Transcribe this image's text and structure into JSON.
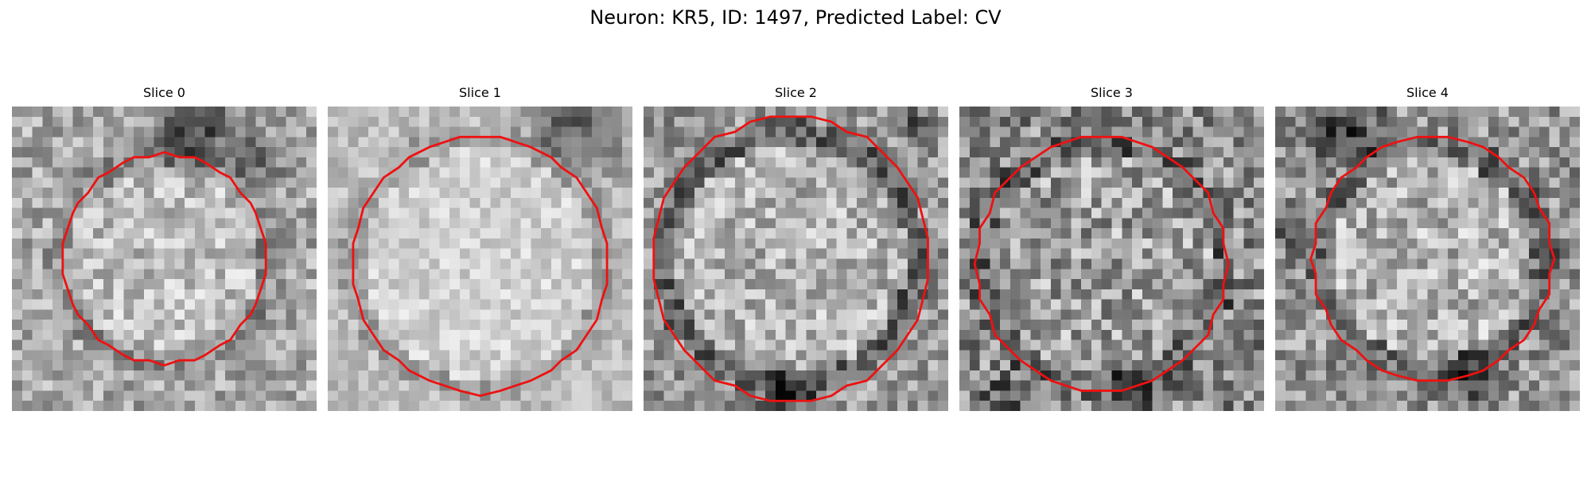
{
  "figure": {
    "title": "Neuron: KR5, ID: 1497, Predicted Label: CV",
    "contour_color": "#ee1111"
  },
  "panels": [
    {
      "title": "Slice 0"
    },
    {
      "title": "Slice 1"
    },
    {
      "title": "Slice 2"
    },
    {
      "title": "Slice 3"
    },
    {
      "title": "Slice 4"
    }
  ]
}
